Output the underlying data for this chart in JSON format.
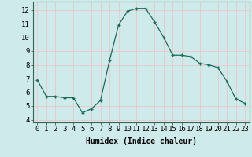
{
  "x": [
    0,
    1,
    2,
    3,
    4,
    5,
    6,
    7,
    8,
    9,
    10,
    11,
    12,
    13,
    14,
    15,
    16,
    17,
    18,
    19,
    20,
    21,
    22,
    23
  ],
  "y": [
    6.9,
    5.7,
    5.7,
    5.6,
    5.6,
    4.5,
    4.8,
    5.4,
    8.3,
    10.9,
    11.9,
    12.1,
    12.1,
    11.1,
    10.0,
    8.7,
    8.7,
    8.6,
    8.1,
    8.0,
    7.8,
    6.8,
    5.5,
    5.2
  ],
  "line_color": "#1a6b5a",
  "marker": "+",
  "marker_size": 3,
  "marker_color": "#1a6b5a",
  "bg_color": "#ceeaea",
  "grid_color": "#e8c8c8",
  "xlabel": "Humidex (Indice chaleur)",
  "xlim": [
    -0.5,
    23.5
  ],
  "ylim": [
    3.8,
    12.6
  ],
  "yticks": [
    4,
    5,
    6,
    7,
    8,
    9,
    10,
    11,
    12
  ],
  "xtick_labels": [
    "0",
    "1",
    "2",
    "3",
    "4",
    "5",
    "6",
    "7",
    "8",
    "9",
    "10",
    "11",
    "12",
    "13",
    "14",
    "15",
    "16",
    "17",
    "18",
    "19",
    "20",
    "21",
    "22",
    "23"
  ],
  "xlabel_fontsize": 7,
  "tick_fontsize": 6.5
}
